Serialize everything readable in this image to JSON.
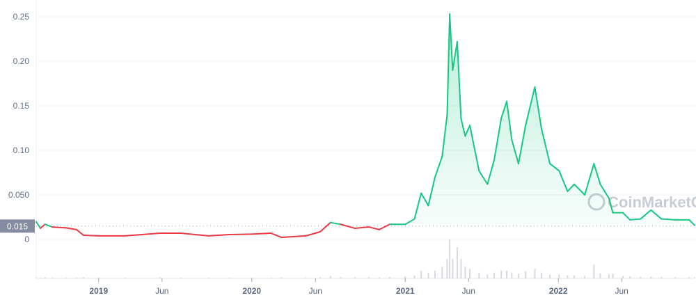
{
  "chart_data": {
    "type": "line",
    "title": "",
    "xlabel": "",
    "ylabel": "",
    "ylim": [
      0,
      0.25
    ],
    "xlim": [
      "2018-08-05",
      "2022-11-22"
    ],
    "grid": true,
    "legend": "none",
    "y_ticks": [
      "0.25",
      "0.20",
      "0.15",
      "0.10",
      "0.050",
      "0"
    ],
    "y_tick_values": [
      0.25,
      0.2,
      0.15,
      0.1,
      0.05,
      0
    ],
    "x_ticks": [
      {
        "label": "2019",
        "date": "2019-01-01",
        "major": true
      },
      {
        "label": "Jun",
        "date": "2019-06-01",
        "major": false
      },
      {
        "label": "2020",
        "date": "2020-01-01",
        "major": true
      },
      {
        "label": "Jun",
        "date": "2020-06-01",
        "major": false
      },
      {
        "label": "2021",
        "date": "2021-01-01",
        "major": true
      },
      {
        "label": "Jun",
        "date": "2021-06-01",
        "major": false
      },
      {
        "label": "2022",
        "date": "2022-01-01",
        "major": true
      },
      {
        "label": "Jun",
        "date": "2022-06-01",
        "major": false
      }
    ],
    "reference_price": 0.015,
    "reference_label": "0.015",
    "colors": {
      "up": "#16c784",
      "down": "#ea3943",
      "grid": "#eff2f5",
      "label_bg": "#858ca2"
    },
    "watermark": "CoinMarketCap",
    "series": [
      {
        "x": [
          "2018-08-05",
          "2018-08-15",
          "2018-08-26",
          "2018-09-12",
          "2018-10-15",
          "2018-11-09",
          "2018-11-26",
          "2019-01-01",
          "2019-03-05",
          "2019-05-27",
          "2019-07-16",
          "2019-09-20",
          "2019-11-09",
          "2020-01-01",
          "2020-02-16",
          "2020-03-12",
          "2020-05-09",
          "2020-06-12",
          "2020-07-07",
          "2020-07-31",
          "2020-09-03",
          "2020-10-06",
          "2020-10-31",
          "2020-11-25",
          "2021-01-01",
          "2021-01-23",
          "2021-02-08",
          "2021-02-25",
          "2021-03-13",
          "2021-03-30",
          "2021-04-11",
          "2021-04-17",
          "2021-04-24",
          "2021-05-05",
          "2021-05-14",
          "2021-05-24",
          "2021-06-04",
          "2021-06-26",
          "2021-07-16",
          "2021-08-01",
          "2021-08-18",
          "2021-08-31",
          "2021-09-12",
          "2021-09-28",
          "2021-10-15",
          "2021-11-06",
          "2021-11-22",
          "2021-12-12",
          "2022-01-03",
          "2022-01-23",
          "2022-02-08",
          "2022-03-05",
          "2022-03-27",
          "2022-04-11",
          "2022-05-02",
          "2022-05-11",
          "2022-06-04",
          "2022-06-21",
          "2022-07-16",
          "2022-08-10",
          "2022-09-04",
          "2022-10-07",
          "2022-11-09",
          "2022-11-22"
        ],
        "y": [
          0.02,
          0.0125,
          0.017,
          0.014,
          0.013,
          0.011,
          0.0047,
          0.004,
          0.004,
          0.007,
          0.007,
          0.004,
          0.0055,
          0.006,
          0.007,
          0.0023,
          0.004,
          0.0086,
          0.019,
          0.017,
          0.0125,
          0.014,
          0.011,
          0.017,
          0.017,
          0.023,
          0.052,
          0.038,
          0.07,
          0.093,
          0.14,
          0.253,
          0.19,
          0.222,
          0.136,
          0.116,
          0.128,
          0.077,
          0.062,
          0.089,
          0.136,
          0.155,
          0.112,
          0.085,
          0.128,
          0.171,
          0.124,
          0.085,
          0.077,
          0.054,
          0.062,
          0.05,
          0.085,
          0.062,
          0.046,
          0.03,
          0.03,
          0.022,
          0.023,
          0.033,
          0.023,
          0.022,
          0.022,
          0.016
        ],
        "volume_relative": [
          0.02,
          0.02,
          0.03,
          0.02,
          0.02,
          0.02,
          0.03,
          0.02,
          0.02,
          0.03,
          0.02,
          0.02,
          0.02,
          0.02,
          0.02,
          0.03,
          0.02,
          0.03,
          0.06,
          0.04,
          0.03,
          0.03,
          0.03,
          0.04,
          0.05,
          0.08,
          0.2,
          0.15,
          0.2,
          0.3,
          0.5,
          1.0,
          0.5,
          0.8,
          0.5,
          0.3,
          0.25,
          0.15,
          0.1,
          0.15,
          0.2,
          0.2,
          0.15,
          0.12,
          0.18,
          0.25,
          0.15,
          0.1,
          0.1,
          0.08,
          0.08,
          0.06,
          0.35,
          0.12,
          0.1,
          0.12,
          0.06,
          0.05,
          0.04,
          0.05,
          0.04,
          0.03,
          0.03,
          0.03
        ]
      }
    ]
  }
}
